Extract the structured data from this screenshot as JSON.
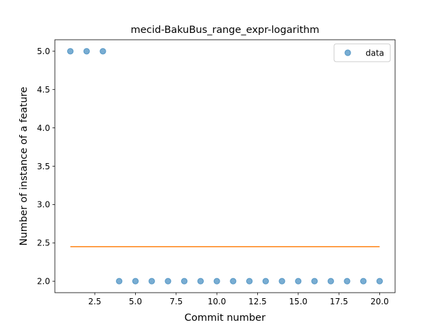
{
  "chart_data": {
    "type": "scatter",
    "title": "mecid-BakuBus_range_expr-logarithm",
    "xlabel": "Commit number",
    "ylabel": "Number of instance of a feature",
    "xlim": [
      0.05,
      20.95
    ],
    "ylim": [
      1.85,
      5.15
    ],
    "xticks": [
      2.5,
      5.0,
      7.5,
      10.0,
      12.5,
      15.0,
      17.5,
      20.0
    ],
    "xtick_labels": [
      "2.5",
      "5.0",
      "7.5",
      "10.0",
      "12.5",
      "15.0",
      "17.5",
      "20.0"
    ],
    "yticks": [
      2.0,
      2.5,
      3.0,
      3.5,
      4.0,
      4.5,
      5.0
    ],
    "ytick_labels": [
      "2.0",
      "2.5",
      "3.0",
      "3.5",
      "4.0",
      "4.5",
      "5.0"
    ],
    "grid": false,
    "legend_position": "top-right",
    "series": [
      {
        "name": "data",
        "kind": "scatter",
        "color": "#1f77b4",
        "x": [
          1,
          2,
          3,
          4,
          5,
          6,
          7,
          8,
          9,
          10,
          11,
          12,
          13,
          14,
          15,
          16,
          17,
          18,
          19,
          20
        ],
        "y": [
          5,
          5,
          5,
          2,
          2,
          2,
          2,
          2,
          2,
          2,
          2,
          2,
          2,
          2,
          2,
          2,
          2,
          2,
          2,
          2
        ]
      },
      {
        "kind": "line",
        "color": "#ff7f0e",
        "x": [
          1,
          20
        ],
        "y": [
          2.45,
          2.45
        ]
      }
    ]
  }
}
